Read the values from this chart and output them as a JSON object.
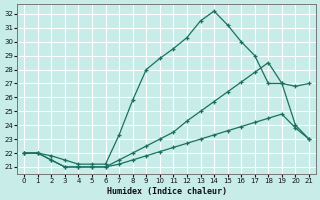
{
  "xlabel": "Humidex (Indice chaleur)",
  "bg_color": "#c8ede8",
  "grid_color": "#ffffff",
  "line_color": "#1a7060",
  "xlim": [
    -0.5,
    21.5
  ],
  "ylim": [
    20.5,
    32.7
  ],
  "yticks": [
    21,
    22,
    23,
    24,
    25,
    26,
    27,
    28,
    29,
    30,
    31,
    32
  ],
  "xticks": [
    0,
    1,
    2,
    3,
    4,
    5,
    6,
    7,
    8,
    9,
    10,
    11,
    12,
    13,
    14,
    15,
    16,
    17,
    18,
    19,
    20,
    21
  ],
  "line_top_x": [
    0,
    1,
    2,
    3,
    4,
    5,
    6,
    7,
    8,
    9,
    10,
    11,
    12,
    13,
    14,
    15,
    16,
    17,
    18,
    19,
    20,
    21
  ],
  "line_top_y": [
    22.0,
    22.0,
    21.8,
    21.5,
    21.2,
    21.2,
    21.2,
    23.3,
    25.8,
    28.0,
    28.8,
    29.5,
    30.3,
    31.5,
    32.2,
    31.2,
    30.0,
    29.0,
    27.0,
    27.0,
    26.8,
    27.0
  ],
  "line_mid_x": [
    0,
    1,
    2,
    3,
    4,
    5,
    6,
    7,
    8,
    9,
    10,
    11,
    12,
    13,
    14,
    15,
    16,
    17,
    18,
    19,
    20,
    21
  ],
  "line_mid_y": [
    22.0,
    22.0,
    21.5,
    21.0,
    21.0,
    21.0,
    21.0,
    21.5,
    22.0,
    22.5,
    23.0,
    23.5,
    24.3,
    25.0,
    25.7,
    26.4,
    27.1,
    27.8,
    28.5,
    27.0,
    24.0,
    23.0
  ],
  "line_bot_x": [
    0,
    1,
    2,
    3,
    4,
    5,
    6,
    7,
    8,
    9,
    10,
    11,
    12,
    13,
    14,
    15,
    16,
    17,
    18,
    19,
    20,
    21
  ],
  "line_bot_y": [
    22.0,
    22.0,
    21.5,
    21.0,
    21.0,
    21.0,
    21.0,
    21.2,
    21.5,
    21.8,
    22.1,
    22.4,
    22.7,
    23.0,
    23.3,
    23.6,
    23.9,
    24.2,
    24.5,
    24.8,
    23.8,
    23.0
  ]
}
